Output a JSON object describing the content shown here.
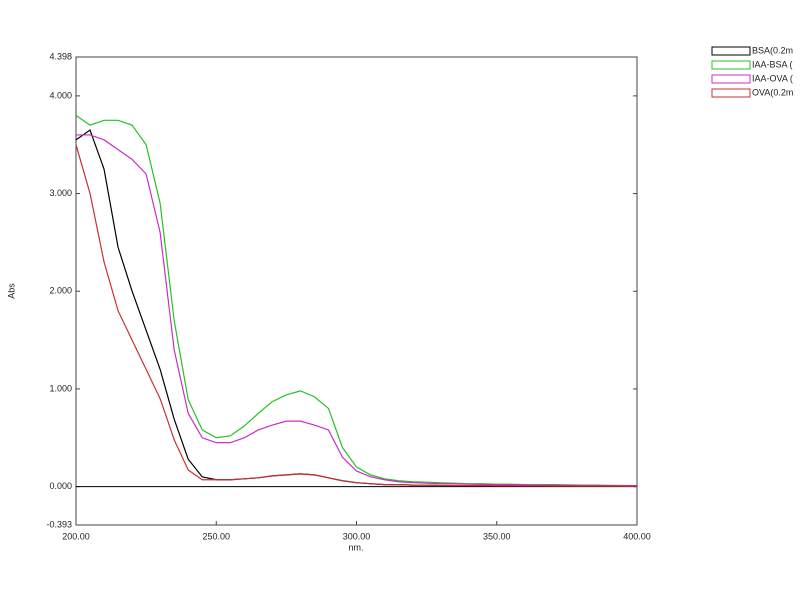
{
  "chart_data": {
    "type": "line",
    "xlabel": "nm.",
    "ylabel": "Abs",
    "x": [
      200,
      205,
      210,
      215,
      220,
      225,
      230,
      235,
      240,
      245,
      250,
      255,
      260,
      265,
      270,
      275,
      280,
      285,
      290,
      295,
      300,
      305,
      310,
      315,
      320,
      325,
      330,
      335,
      340,
      345,
      350,
      355,
      360,
      365,
      370,
      375,
      380,
      385,
      390,
      395,
      400
    ],
    "series": [
      {
        "name": "BSA(0.2m",
        "color": "#000000",
        "values": [
          3.55,
          3.65,
          3.25,
          2.45,
          2.0,
          1.6,
          1.2,
          0.69,
          0.28,
          0.1,
          0.07,
          0.07,
          0.08,
          0.09,
          0.11,
          0.12,
          0.13,
          0.12,
          0.09,
          0.06,
          0.04,
          0.03,
          0.02,
          0.02,
          0.015,
          0.015,
          0.012,
          0.01,
          0.01,
          0.01,
          0.008,
          0.008,
          0.007,
          0.007,
          0.006,
          0.006,
          0.005,
          0.005,
          0.005,
          0.004,
          0.004
        ]
      },
      {
        "name": "IAA-BSA (",
        "color": "#22c322",
        "values": [
          3.8,
          3.7,
          3.75,
          3.75,
          3.7,
          3.5,
          2.9,
          1.7,
          0.89,
          0.58,
          0.5,
          0.52,
          0.62,
          0.75,
          0.87,
          0.94,
          0.98,
          0.92,
          0.8,
          0.4,
          0.2,
          0.12,
          0.08,
          0.06,
          0.05,
          0.045,
          0.04,
          0.035,
          0.03,
          0.03,
          0.025,
          0.025,
          0.02,
          0.02,
          0.02,
          0.018,
          0.016,
          0.015,
          0.013,
          0.012,
          0.01
        ]
      },
      {
        "name": "IAA-OVA (",
        "color": "#c82fc8",
        "values": [
          3.6,
          3.6,
          3.55,
          3.45,
          3.35,
          3.2,
          2.6,
          1.4,
          0.75,
          0.5,
          0.45,
          0.45,
          0.5,
          0.58,
          0.63,
          0.67,
          0.67,
          0.63,
          0.58,
          0.3,
          0.16,
          0.1,
          0.07,
          0.05,
          0.04,
          0.035,
          0.03,
          0.028,
          0.025,
          0.022,
          0.02,
          0.02,
          0.018,
          0.016,
          0.015,
          0.014,
          0.013,
          0.012,
          0.011,
          0.01,
          0.01
        ]
      },
      {
        "name": "OVA(0.2m",
        "color": "#c83232",
        "values": [
          3.5,
          3.0,
          2.3,
          1.8,
          1.5,
          1.2,
          0.9,
          0.48,
          0.17,
          0.07,
          0.07,
          0.07,
          0.08,
          0.09,
          0.11,
          0.12,
          0.13,
          0.12,
          0.09,
          0.06,
          0.04,
          0.03,
          0.02,
          0.02,
          0.015,
          0.015,
          0.012,
          0.01,
          0.01,
          0.01,
          0.008,
          0.008,
          0.007,
          0.007,
          0.006,
          0.006,
          0.005,
          0.005,
          0.005,
          0.004,
          0.004
        ]
      }
    ],
    "xlim": [
      200,
      400
    ],
    "xticks": [
      {
        "value": 200,
        "label": "200.00"
      },
      {
        "value": 250,
        "label": "250.00"
      },
      {
        "value": 300,
        "label": "300.00"
      },
      {
        "value": 350,
        "label": "350.00"
      },
      {
        "value": 400,
        "label": "400.00"
      }
    ],
    "ylim": [
      -0.393,
      4.398
    ],
    "yticks": [
      {
        "value": -0.393,
        "label": "-0.393"
      },
      {
        "value": 0,
        "label": "0.000"
      },
      {
        "value": 1,
        "label": "1.000"
      },
      {
        "value": 2,
        "label": "2.000"
      },
      {
        "value": 3,
        "label": "3.000"
      },
      {
        "value": 4,
        "label": "4.000"
      },
      {
        "value": 4.398,
        "label": "4.398"
      }
    ],
    "legend": "top-right"
  }
}
